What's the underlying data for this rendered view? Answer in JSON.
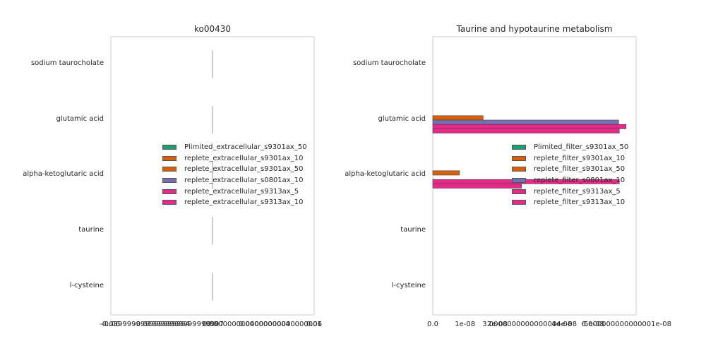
{
  "chart_data": [
    {
      "type": "bar",
      "orientation": "horizontal",
      "title": "ko00430",
      "categories": [
        "sodium taurocholate",
        "glutamic acid",
        "alpha-ketoglutaric acid",
        "taurine",
        "l-cysteine"
      ],
      "x_tick_labels": [
        "-0.06",
        "-0.039999999999999994",
        "-0.019999999999999997",
        "0.0",
        "0.020000000000000004",
        "0.04000000000000001",
        "0.06"
      ],
      "xlim": [
        -0.06,
        0.06
      ],
      "legend_position": "center-right",
      "grid": false,
      "series": [
        {
          "name": "Plimited_extracellular_s9301ax_50",
          "color": "#1b9e77",
          "values": [
            0,
            0,
            0,
            0,
            0
          ]
        },
        {
          "name": "replete_extracellular_s9301ax_10",
          "color": "#d95f02",
          "values": [
            0,
            0,
            0,
            0,
            0
          ]
        },
        {
          "name": "replete_extracellular_s9301ax_50",
          "color": "#d95f02",
          "values": [
            0,
            0,
            0,
            0,
            0
          ]
        },
        {
          "name": "replete_extracellular_s0801ax_10",
          "color": "#7570b3",
          "values": [
            0,
            0,
            0,
            0,
            0
          ]
        },
        {
          "name": "replete_extracellular_s9313ax_5",
          "color": "#e7298a",
          "values": [
            0,
            0,
            0,
            0,
            0
          ]
        },
        {
          "name": "replete_extracellular_s9313ax_10",
          "color": "#e7298a",
          "values": [
            0,
            0,
            0,
            0,
            0
          ]
        }
      ]
    },
    {
      "type": "bar",
      "orientation": "horizontal",
      "title": "Taurine and hypotaurine metabolism",
      "categories": [
        "sodium taurocholate",
        "glutamic acid",
        "alpha-ketoglutaric acid",
        "taurine",
        "l-cysteine"
      ],
      "x_tick_labels": [
        "0.0",
        "1e-08",
        "2e-08",
        "3.0000000000000004e-08",
        "4e-08",
        "5e-08",
        "6.000000000000001e-08"
      ],
      "xlim": [
        0,
        6.3e-08
      ],
      "legend_position": "center-right",
      "grid": false,
      "series": [
        {
          "name": "Plimited_filter_s9301ax_50",
          "color": "#1b9e77",
          "values": [
            0,
            0,
            0,
            0,
            0
          ]
        },
        {
          "name": "replete_filter_s9301ax_10",
          "color": "#d95f02",
          "values": [
            0,
            0,
            0,
            0,
            0
          ]
        },
        {
          "name": "replete_filter_s9301ax_50",
          "color": "#d95f02",
          "values": [
            0,
            1.56e-08,
            8.3e-09,
            0,
            0
          ]
        },
        {
          "name": "replete_filter_s0801ax_10",
          "color": "#7570b3",
          "values": [
            0,
            5.76e-08,
            0,
            0,
            0
          ]
        },
        {
          "name": "replete_filter_s9313ax_5",
          "color": "#e7298a",
          "values": [
            0,
            5.99e-08,
            5.78e-08,
            0,
            0
          ]
        },
        {
          "name": "replete_filter_s9313ax_10",
          "color": "#e7298a",
          "values": [
            0,
            5.78e-08,
            2.75e-08,
            0,
            0
          ]
        }
      ]
    }
  ]
}
